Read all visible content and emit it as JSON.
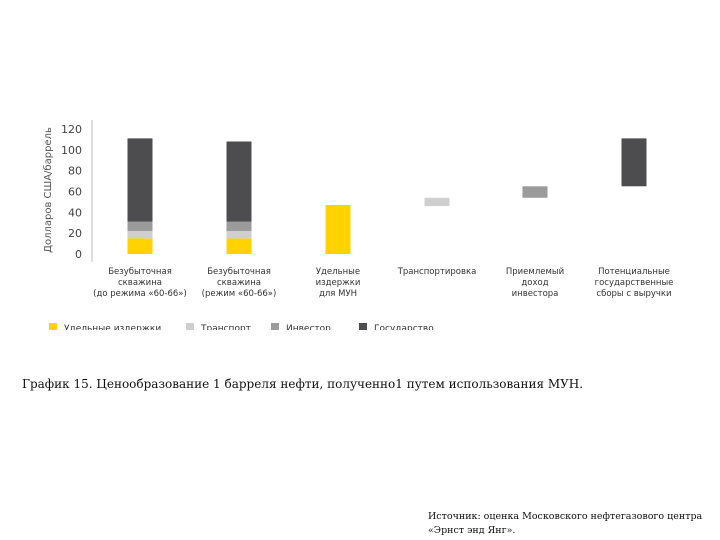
{
  "chart_data": {
    "type": "bar",
    "stacked": true,
    "ylabel": "Долларов США/баррель",
    "ylim": [
      0,
      120
    ],
    "yticks": [
      0,
      20,
      40,
      60,
      80,
      100,
      120
    ],
    "grid": false,
    "categories": [
      [
        "Безубыточная",
        "скважина",
        "(до режима «60-66»)"
      ],
      [
        "Безубыточная",
        "скважина",
        "(режим «60-66»)"
      ],
      [
        "Удельные",
        "издержки",
        "для МУН"
      ],
      [
        "Транспортировка"
      ],
      [
        "Приемлемый",
        "доход",
        "инвестора"
      ],
      [
        "Потенциальные",
        "государственные",
        "сборы с выручки"
      ]
    ],
    "series": [
      {
        "name": "Удельные издержки",
        "color": "#FFD200",
        "base": [
          0,
          0,
          0,
          null,
          null,
          null
        ],
        "values": [
          15,
          15,
          47,
          null,
          null,
          null
        ]
      },
      {
        "name": "Транспорт",
        "color": "#CFCFCF",
        "base": [
          15,
          15,
          null,
          46,
          null,
          null
        ],
        "values": [
          7,
          7,
          null,
          8,
          null,
          null
        ]
      },
      {
        "name": "Инвестор",
        "color": "#9B9B9B",
        "base": [
          22,
          22,
          null,
          null,
          54,
          null
        ],
        "values": [
          9,
          9,
          null,
          null,
          11,
          null
        ]
      },
      {
        "name": "Государство",
        "color": "#4D4D4F",
        "base": [
          31,
          31,
          null,
          null,
          null,
          65
        ],
        "values": [
          80,
          77,
          null,
          null,
          null,
          46
        ]
      }
    ],
    "legend_position": "bottom-left"
  },
  "caption": "График 15. Ценообразование 1 барреля нефти, полученно1 путем использования МУН.",
  "source_lines": [
    "Источник: оценка Московского нефтегазового центра",
    "«Эрнст энд Янг»."
  ]
}
